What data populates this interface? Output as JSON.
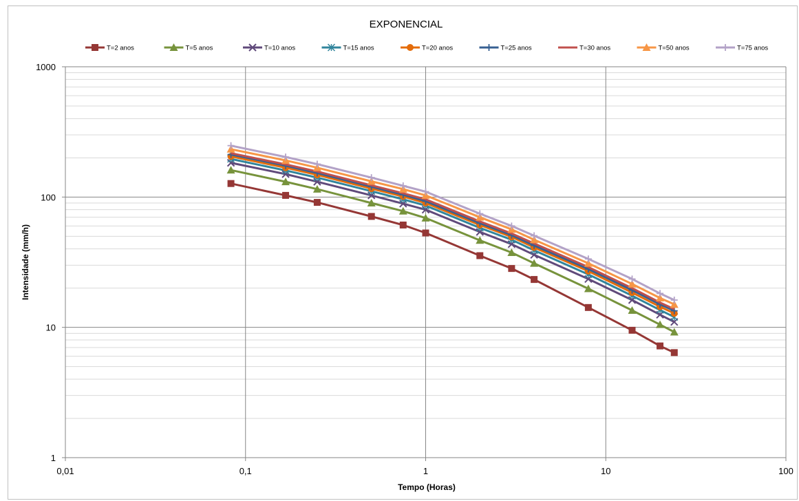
{
  "chart_data": {
    "type": "line",
    "title": "EXPONENCIAL",
    "xlabel": "Tempo (Horas)",
    "ylabel": "Intensidade (mm/h)",
    "x_scale": "log",
    "y_scale": "log",
    "xlim": [
      0.01,
      100
    ],
    "ylim": [
      1,
      1000
    ],
    "x_ticks": [
      "0,01",
      "0,1",
      "1",
      "10",
      "100"
    ],
    "y_ticks": [
      "1",
      "10",
      "100",
      "1000"
    ],
    "grid": true,
    "legend_position": "top",
    "x": [
      0.083,
      0.167,
      0.25,
      0.5,
      0.75,
      1,
      2,
      3,
      4,
      8,
      14,
      20,
      24
    ],
    "series": [
      {
        "name": "T=2 anos",
        "color": "#953735",
        "marker": "square",
        "values": [
          127,
          103,
          91,
          71,
          61,
          53,
          35.5,
          28.3,
          23.3,
          14.2,
          9.5,
          7.2,
          6.4
        ]
      },
      {
        "name": "T=5 anos",
        "color": "#77933c",
        "marker": "triangle",
        "values": [
          161,
          131,
          115,
          90,
          78,
          69,
          46.5,
          37.5,
          31,
          19.8,
          13.5,
          10.5,
          9.2
        ]
      },
      {
        "name": "T=10 anos",
        "color": "#604a7b",
        "marker": "x",
        "values": [
          183,
          150,
          131,
          103,
          89,
          80,
          54,
          43.5,
          36,
          23.5,
          16.2,
          12.5,
          11
        ]
      },
      {
        "name": "T=15 anos",
        "color": "#31859c",
        "marker": "star",
        "values": [
          196,
          160,
          141,
          111,
          96,
          86,
          58,
          47,
          39,
          25.5,
          17.5,
          13.6,
          12
        ]
      },
      {
        "name": "T=20 anos",
        "color": "#e46c0a",
        "marker": "circle",
        "values": [
          205,
          168,
          148,
          116,
          101,
          90,
          61,
          49.5,
          41,
          27,
          18.5,
          14.4,
          12.8
        ]
      },
      {
        "name": "T=25 anos",
        "color": "#376092",
        "marker": "plus",
        "values": [
          212,
          174,
          153,
          120,
          104,
          93,
          63,
          51,
          42.5,
          28,
          19.3,
          15,
          13.4
        ]
      },
      {
        "name": "T=30 anos",
        "color": "#c0504d",
        "marker": "none",
        "values": [
          217,
          178,
          157,
          123,
          107,
          96,
          65,
          52.5,
          44,
          29,
          20,
          15.5,
          13.8
        ]
      },
      {
        "name": "T=50 anos",
        "color": "#f79646",
        "marker": "triangle",
        "values": [
          233,
          191,
          168,
          132,
          115,
          103,
          70,
          56.5,
          47,
          31,
          21.5,
          16.8,
          15
        ]
      },
      {
        "name": "T=75 anos",
        "color": "#b3a2c7",
        "marker": "plus",
        "values": [
          248,
          203,
          179,
          141,
          122,
          110,
          74.5,
          60,
          50.5,
          33.5,
          23.5,
          18.2,
          16.2
        ]
      }
    ]
  }
}
